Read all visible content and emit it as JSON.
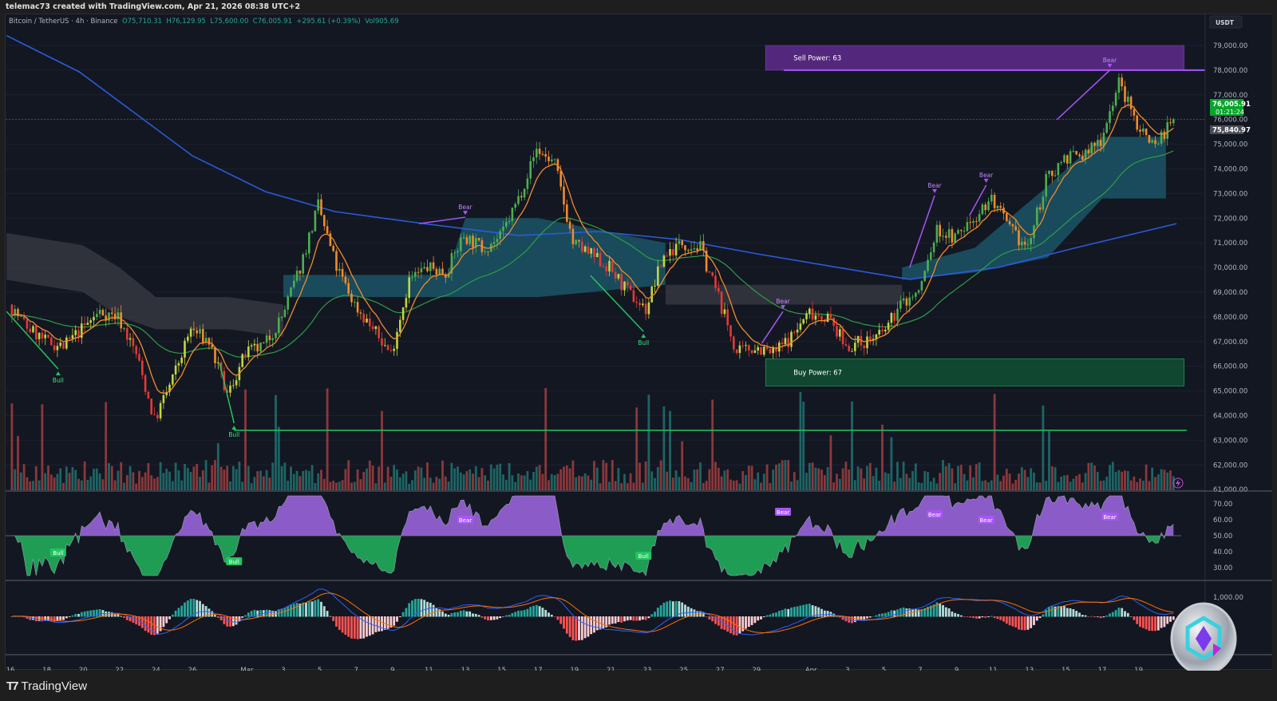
{
  "header": {
    "credit": "telemac73 created with TradingView.com, Apr 21, 2026 08:38 UTC+2"
  },
  "legend": {
    "symbol": "Bitcoin / TetherUS · 4h · Binance",
    "open": "O75,710.31",
    "high": "H76,129.95",
    "low": "L75,600.00",
    "close": "C76,005.91",
    "change": "+295.61 (+0.39%)",
    "volume": "Vol905.69"
  },
  "price_axis": {
    "currency": "USDT",
    "last_price": "76,005.91",
    "countdown": "01:21:24",
    "prev_price": "75,840.97"
  },
  "footer": {
    "brand": "TradingView"
  },
  "colors": {
    "background": "#131722",
    "up": "#26a69a",
    "down": "#ef5350",
    "bull": "#22c55e",
    "bear": "#a855f7",
    "ema_fast": "#f28b2c",
    "ema_slow": "#2e9e45",
    "ma_long": "#2a5bd7",
    "sell_zone": "#5b2a86",
    "buy_zone": "#0f4d32"
  },
  "chart_data": [
    {
      "type": "candlestick",
      "title": "Bitcoin / TetherUS · 4h · Binance",
      "x_start": "2026-02-16",
      "x_interval": "1 day (approx. daily closes)",
      "x_ticks": [
        "16",
        "18",
        "20",
        "22",
        "24",
        "26",
        "Mar",
        "3",
        "5",
        "7",
        "9",
        "11",
        "13",
        "15",
        "17",
        "19",
        "21",
        "23",
        "25",
        "27",
        "29",
        "Apr",
        "3",
        "5",
        "7",
        "9",
        "11",
        "13",
        "15",
        "17",
        "19"
      ],
      "ylim": [
        61000,
        79000
      ],
      "y_ticks": [
        "79,000.00",
        "78,000.00",
        "77,000.00",
        "76,000.00",
        "75,000.00",
        "74,000.00",
        "73,000.00",
        "72,000.00",
        "71,000.00",
        "70,000.00",
        "69,000.00",
        "68,000.00",
        "67,000.00",
        "66,000.00",
        "65,000.00",
        "64,000.00",
        "63,000.00",
        "62,000.00",
        "61,000.00"
      ],
      "closes": [
        68500,
        67600,
        67000,
        66800,
        67500,
        68200,
        68000,
        66500,
        63800,
        65500,
        67500,
        67000,
        64800,
        66500,
        66800,
        68000,
        70000,
        72500,
        70000,
        68500,
        67500,
        66500,
        69500,
        70000,
        69800,
        71300,
        70800,
        71200,
        72800,
        74800,
        74200,
        71000,
        70500,
        70000,
        69000,
        68300,
        70500,
        71000,
        70800,
        68800,
        66500,
        66800,
        66500,
        67200,
        68200,
        68000,
        66800,
        67000,
        67300,
        68500,
        69000,
        71500,
        71200,
        72000,
        72800,
        71500,
        70800,
        73500,
        74500,
        74500,
        75200,
        77500,
        75800,
        75000,
        76005.91
      ],
      "ma_long": [
        [
          "2026-02-15T19:00",
          79400
        ],
        [
          "2026-02-19T19:00",
          77930
        ],
        [
          "2026-02-26T00:00",
          74530
        ],
        [
          "2026-03-02T00:00",
          73080
        ],
        [
          "2026-03-05T20:00",
          72270
        ],
        [
          "2026-03-10T17:00",
          71780
        ],
        [
          "2026-03-15T22:00",
          71300
        ],
        [
          "2026-03-20T07:00",
          71460
        ],
        [
          "2026-03-24T17:00",
          71140
        ],
        [
          "2026-03-29T02:00",
          70550
        ],
        [
          "2026-04-02T12:00",
          70000
        ],
        [
          "2026-04-06T10:00",
          69520
        ],
        [
          "2026-04-11T06:00",
          70000
        ],
        [
          "2026-04-15T14:00",
          70810
        ],
        [
          "2026-04-21T02:00",
          71780
        ]
      ],
      "cloud": [
        {
          "color": "gray",
          "points": [
            [
              "2026-02-15T19:00",
              71400,
              69500
            ],
            [
              "2026-02-20T00:00",
              70900,
              69000
            ],
            [
              "2026-02-22T00:00",
              70000,
              68000
            ],
            [
              "2026-02-24T00:00",
              68800,
              67500
            ],
            [
              "2026-02-28T00:00",
              68800,
              67500
            ],
            [
              "2026-03-03T00:00",
              68500,
              67200
            ]
          ]
        },
        {
          "color": "teal",
          "points": [
            [
              "2026-03-03T00:00",
              69700,
              68800
            ],
            [
              "2026-03-12T00:00",
              69700,
              68800
            ],
            [
              "2026-03-13T00:00",
              72000,
              68800
            ],
            [
              "2026-03-17T00:00",
              72000,
              68800
            ],
            [
              "2026-03-24T00:00",
              71000,
              69300
            ]
          ]
        },
        {
          "color": "gray",
          "points": [
            [
              "2026-03-24T00:00",
              69300,
              68500
            ],
            [
              "2026-04-06T00:00",
              69300,
              68500
            ]
          ]
        },
        {
          "color": "teal",
          "points": [
            [
              "2026-04-06T00:00",
              70000,
              69500
            ],
            [
              "2026-04-10T00:00",
              70800,
              69800
            ],
            [
              "2026-04-14T00:00",
              73300,
              70400
            ],
            [
              "2026-04-17T00:00",
              75300,
              72800
            ],
            [
              "2026-04-20T12:00",
              75300,
              72800
            ]
          ]
        }
      ],
      "zones": [
        {
          "label": "Sell Power: 63",
          "from": "2026-03-29T12:00",
          "to": "2026-04-21T12:00",
          "top": 79000,
          "bottom": 78000,
          "color": "sell"
        },
        {
          "label": "Buy Power: 67",
          "from": "2026-03-29T12:00",
          "to": "2026-04-21T12:00",
          "top": 66300,
          "bottom": 65200,
          "color": "buy"
        }
      ],
      "support_level": {
        "price": 63400,
        "from": "2026-02-28T07:00"
      },
      "signals": [
        {
          "label": "Bull",
          "date": "2026-02-18T15:00",
          "price": 65890
        },
        {
          "label": "Bull",
          "date": "2026-02-28T07:00",
          "price": 63690
        },
        {
          "label": "Bear",
          "date": "2026-03-13T00:00",
          "price": 72040
        },
        {
          "label": "Bull",
          "date": "2026-03-22T19:00",
          "price": 67410
        },
        {
          "label": "Bear",
          "date": "2026-03-30T11:00",
          "price": 68220
        },
        {
          "label": "Bear",
          "date": "2026-04-07T19:00",
          "price": 72920
        },
        {
          "label": "Bear",
          "date": "2026-04-10T15:00",
          "price": 73340
        },
        {
          "label": "Bear",
          "date": "2026-04-17T10:00",
          "price": 78000
        }
      ],
      "divergences": [
        {
          "type": "bull",
          "from": [
            "2026-02-15T19:00",
            68220
          ],
          "to": [
            "2026-02-18T15:00",
            65890
          ]
        },
        {
          "type": "bull",
          "from": [
            "2026-02-27T12:00",
            66120
          ],
          "to": [
            "2026-02-28T07:00",
            63690
          ]
        },
        {
          "type": "bear",
          "from": [
            "2026-03-10T11:00",
            71780
          ],
          "to": [
            "2026-03-13T00:00",
            72040
          ]
        },
        {
          "type": "bull",
          "from": [
            "2026-03-19T21:00",
            69680
          ],
          "to": [
            "2026-03-22T19:00",
            67410
          ]
        },
        {
          "type": "bear",
          "from": [
            "2026-03-29T07:00",
            66930
          ],
          "to": [
            "2026-03-30T11:00",
            68220
          ]
        },
        {
          "type": "bear",
          "from": [
            "2026-04-06T10:00",
            70000
          ],
          "to": [
            "2026-04-07T19:00",
            72920
          ]
        },
        {
          "type": "bear",
          "from": [
            "2026-04-09T17:00",
            72110
          ],
          "to": [
            "2026-04-10T15:00",
            73340
          ]
        },
        {
          "type": "bear",
          "from": [
            "2026-04-14T12:00",
            75990
          ],
          "to": [
            "2026-04-17T10:00",
            78000
          ]
        }
      ]
    },
    {
      "type": "bar",
      "title": "",
      "series": "volume"
    },
    {
      "type": "area",
      "title": "",
      "ylim": [
        25,
        75
      ],
      "y_ticks": [
        "70.00",
        "60.00",
        "50.00",
        "40.00",
        "30.00"
      ],
      "signals": [
        {
          "label": "Bull",
          "date": "2026-02-18T15:00",
          "value": 39.5
        },
        {
          "label": "Bull",
          "date": "2026-02-28T07:00",
          "value": 34
        },
        {
          "label": "Bear",
          "date": "2026-03-13T00:00",
          "value": 60
        },
        {
          "label": "Bull",
          "date": "2026-03-22T19:00",
          "value": 37.5
        },
        {
          "label": "Bear",
          "date": "2026-03-30T11:00",
          "value": 65
        },
        {
          "label": "Bear",
          "date": "2026-04-07T19:00",
          "value": 63.5
        },
        {
          "label": "Bear",
          "date": "2026-04-10T15:00",
          "value": 60
        },
        {
          "label": "Bear",
          "date": "2026-04-17T10:00",
          "value": 62
        }
      ]
    },
    {
      "type": "bar",
      "title": "",
      "y_ticks": [
        "1,000.00"
      ]
    }
  ]
}
